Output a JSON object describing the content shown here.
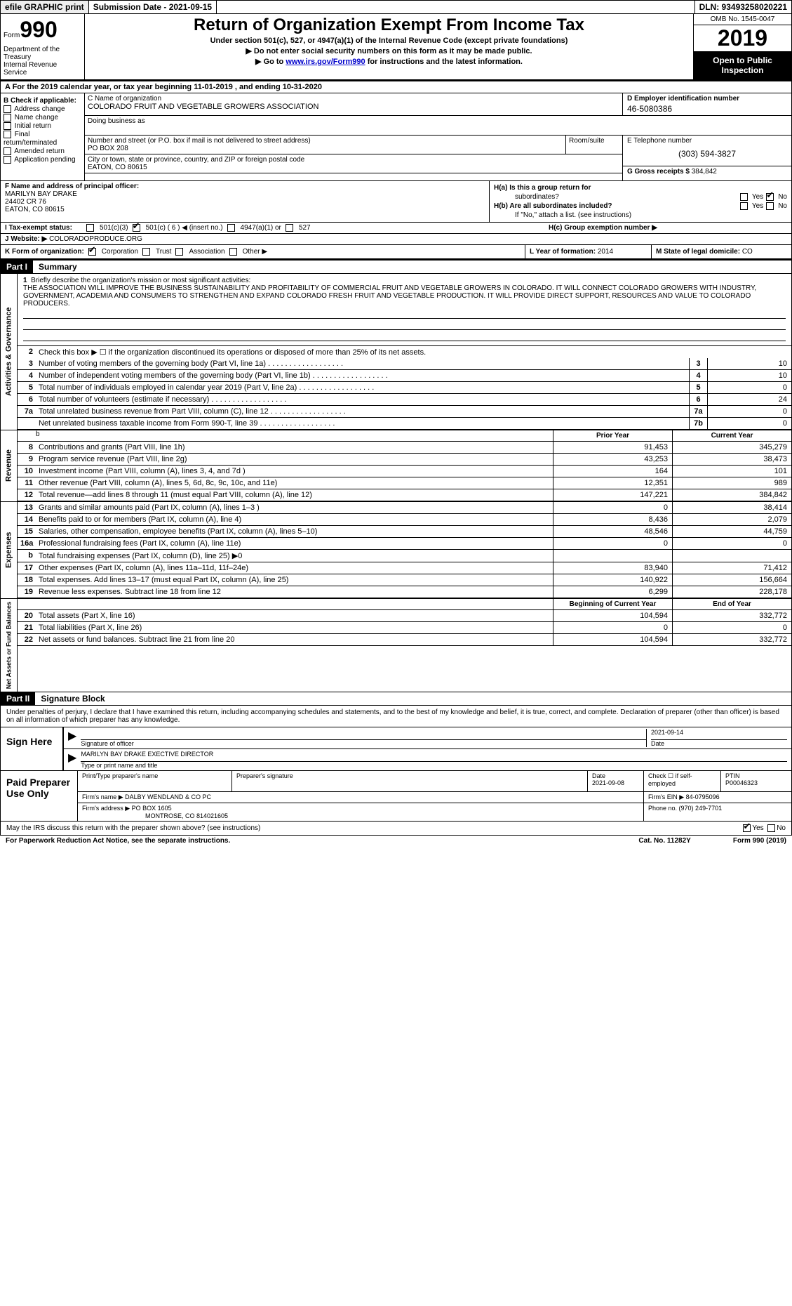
{
  "topbar": {
    "efile": "efile GRAPHIC print",
    "submission": "Submission Date - 2021-09-15",
    "dln": "DLN: 93493258020221"
  },
  "header": {
    "form_label": "Form",
    "form_num": "990",
    "dept": "Department of the Treasury\nInternal Revenue Service",
    "title": "Return of Organization Exempt From Income Tax",
    "sub1": "Under section 501(c), 527, or 4947(a)(1) of the Internal Revenue Code (except private foundations)",
    "sub2": "▶ Do not enter social security numbers on this form as it may be made public.",
    "sub3_pre": "▶ Go to ",
    "sub3_link": "www.irs.gov/Form990",
    "sub3_post": " for instructions and the latest information.",
    "omb": "OMB No. 1545-0047",
    "year": "2019",
    "open1": "Open to Public",
    "open2": "Inspection"
  },
  "section_a": "A For the 2019 calendar year, or tax year beginning 11-01-2019   , and ending 10-31-2020",
  "col_b": {
    "title": "B Check if applicable:",
    "items": [
      "Address change",
      "Name change",
      "Initial return",
      "Final return/terminated",
      "Amended return",
      "Application pending"
    ]
  },
  "col_c": {
    "name_label": "C Name of organization",
    "name": "COLORADO FRUIT AND VEGETABLE GROWERS ASSOCIATION",
    "dba_label": "Doing business as",
    "street_label": "Number and street (or P.O. box if mail is not delivered to street address)",
    "street": "PO BOX 208",
    "suite_label": "Room/suite",
    "city_label": "City or town, state or province, country, and ZIP or foreign postal code",
    "city": "EATON, CO  80615"
  },
  "col_d": {
    "label": "D Employer identification number",
    "val": "46-5080386"
  },
  "col_e": {
    "label": "E Telephone number",
    "val": "(303) 594-3827"
  },
  "col_g": {
    "label": "G Gross receipts $ ",
    "val": "384,842"
  },
  "col_f": {
    "label": "F  Name and address of principal officer:",
    "name": "MARILYN BAY DRAKE",
    "addr1": "24402 CR 76",
    "addr2": "EATON, CO  80615"
  },
  "col_h": {
    "ha": "H(a)  Is this a group return for",
    "ha2": "subordinates?",
    "hb": "H(b)  Are all subordinates included?",
    "hb2": "If \"No,\" attach a list. (see instructions)",
    "hc": "H(c)  Group exemption number ▶",
    "yes": "Yes",
    "no": "No"
  },
  "col_i": {
    "label": "I    Tax-exempt status:",
    "o1": "501(c)(3)",
    "o2": "501(c) ( 6 ) ◀ (insert no.)",
    "o3": "4947(a)(1) or",
    "o4": "527"
  },
  "col_j": {
    "label": "J   Website: ▶  ",
    "val": "COLORADOPRODUCE.ORG"
  },
  "col_k": {
    "label": "K Form of organization:",
    "corp": "Corporation",
    "trust": "Trust",
    "assoc": "Association",
    "other": "Other ▶"
  },
  "col_l": {
    "label": "L Year of formation: ",
    "val": "2014"
  },
  "col_m": {
    "label": "M State of legal domicile: ",
    "val": "CO"
  },
  "part1": {
    "header": "Part I",
    "title": "Summary"
  },
  "summary": {
    "line1_label": "Briefly describe the organization's mission or most significant activities:",
    "line1_text": "THE ASSOCIATION WILL IMPROVE THE BUSINESS SUSTAINABILITY AND PROFITABILITY OF COMMERCIAL FRUIT AND VEGETABLE GROWERS IN COLORADO. IT WILL CONNECT COLORADO GROWERS WITH INDUSTRY, GOVERNMENT, ACADEMIA AND CONSUMERS TO STRENGTHEN AND EXPAND COLORADO FRESH FRUIT AND VEGETABLE PRODUCTION. IT WILL PROVIDE DIRECT SUPPORT, RESOURCES AND VALUE TO COLORADO PRODUCERS.",
    "line2": "Check this box ▶ ☐  if the organization discontinued its operations or disposed of more than 25% of its net assets.",
    "lines_single": [
      {
        "n": "3",
        "t": "Number of voting members of the governing body (Part VI, line 1a)",
        "b": "3",
        "v": "10"
      },
      {
        "n": "4",
        "t": "Number of independent voting members of the governing body (Part VI, line 1b)",
        "b": "4",
        "v": "10"
      },
      {
        "n": "5",
        "t": "Total number of individuals employed in calendar year 2019 (Part V, line 2a)",
        "b": "5",
        "v": "0"
      },
      {
        "n": "6",
        "t": "Total number of volunteers (estimate if necessary)",
        "b": "6",
        "v": "24"
      },
      {
        "n": "7a",
        "t": "Total unrelated business revenue from Part VIII, column (C), line 12",
        "b": "7a",
        "v": "0"
      },
      {
        "n": "",
        "t": "Net unrelated business taxable income from Form 990-T, line 39",
        "b": "7b",
        "v": "0"
      }
    ],
    "col_prior": "Prior Year",
    "col_current": "Current Year",
    "col_begin": "Beginning of Current Year",
    "col_end": "End of Year",
    "vtab_ag": "Activities & Governance",
    "vtab_rev": "Revenue",
    "vtab_exp": "Expenses",
    "vtab_net": "Net Assets or Fund Balances",
    "revenue": [
      {
        "n": "8",
        "t": "Contributions and grants (Part VIII, line 1h)",
        "c1": "91,453",
        "c2": "345,279"
      },
      {
        "n": "9",
        "t": "Program service revenue (Part VIII, line 2g)",
        "c1": "43,253",
        "c2": "38,473"
      },
      {
        "n": "10",
        "t": "Investment income (Part VIII, column (A), lines 3, 4, and 7d )",
        "c1": "164",
        "c2": "101"
      },
      {
        "n": "11",
        "t": "Other revenue (Part VIII, column (A), lines 5, 6d, 8c, 9c, 10c, and 11e)",
        "c1": "12,351",
        "c2": "989"
      },
      {
        "n": "12",
        "t": "Total revenue—add lines 8 through 11 (must equal Part VIII, column (A), line 12)",
        "c1": "147,221",
        "c2": "384,842"
      }
    ],
    "expenses": [
      {
        "n": "13",
        "t": "Grants and similar amounts paid (Part IX, column (A), lines 1–3 )",
        "c1": "0",
        "c2": "38,414"
      },
      {
        "n": "14",
        "t": "Benefits paid to or for members (Part IX, column (A), line 4)",
        "c1": "8,436",
        "c2": "2,079"
      },
      {
        "n": "15",
        "t": "Salaries, other compensation, employee benefits (Part IX, column (A), lines 5–10)",
        "c1": "48,546",
        "c2": "44,759"
      },
      {
        "n": "16a",
        "t": "Professional fundraising fees (Part IX, column (A), line 11e)",
        "c1": "0",
        "c2": "0"
      },
      {
        "n": "b",
        "t": "Total fundraising expenses (Part IX, column (D), line 25) ▶0",
        "c1": "",
        "c2": "",
        "shaded": true
      },
      {
        "n": "17",
        "t": "Other expenses (Part IX, column (A), lines 11a–11d, 11f–24e)",
        "c1": "83,940",
        "c2": "71,412"
      },
      {
        "n": "18",
        "t": "Total expenses. Add lines 13–17 (must equal Part IX, column (A), line 25)",
        "c1": "140,922",
        "c2": "156,664"
      },
      {
        "n": "19",
        "t": "Revenue less expenses. Subtract line 18 from line 12",
        "c1": "6,299",
        "c2": "228,178"
      }
    ],
    "netassets": [
      {
        "n": "20",
        "t": "Total assets (Part X, line 16)",
        "c1": "104,594",
        "c2": "332,772"
      },
      {
        "n": "21",
        "t": "Total liabilities (Part X, line 26)",
        "c1": "0",
        "c2": "0"
      },
      {
        "n": "22",
        "t": "Net assets or fund balances. Subtract line 21 from line 20",
        "c1": "104,594",
        "c2": "332,772"
      }
    ]
  },
  "part2": {
    "header": "Part II",
    "title": "Signature Block",
    "text": "Under penalties of perjury, I declare that I have examined this return, including accompanying schedules and statements, and to the best of my knowledge and belief, it is true, correct, and complete. Declaration of preparer (other than officer) is based on all information of which preparer has any knowledge."
  },
  "sign": {
    "label": "Sign Here",
    "sig_officer": "Signature of officer",
    "date": "Date",
    "date_val": "2021-09-14",
    "name": "MARILYN BAY DRAKE  EXECTIVE DIRECTOR",
    "name_label": "Type or print name and title"
  },
  "prep": {
    "label": "Paid Preparer Use Only",
    "h_name": "Print/Type preparer's name",
    "h_sig": "Preparer's signature",
    "h_date": "Date",
    "date_val": "2021-09-08",
    "h_check": "Check ☐ if self-employed",
    "h_ptin": "PTIN",
    "ptin_val": "P00046323",
    "firm_label": "Firm's name    ▶ ",
    "firm": "DALBY WENDLAND & CO PC",
    "ein_label": "Firm's EIN ▶ ",
    "ein": "84-0795096",
    "addr_label": "Firm's address ▶ ",
    "addr": "PO BOX 1605",
    "addr2": "MONTROSE, CO  814021605",
    "phone_label": "Phone no. ",
    "phone": "(970) 249-7701"
  },
  "footer": {
    "discuss": "May the IRS discuss this return with the preparer shown above? (see instructions)",
    "yes": "Yes",
    "no": "No",
    "paperwork": "For Paperwork Reduction Act Notice, see the separate instructions.",
    "cat": "Cat. No. 11282Y",
    "form": "Form 990 (2019)"
  }
}
